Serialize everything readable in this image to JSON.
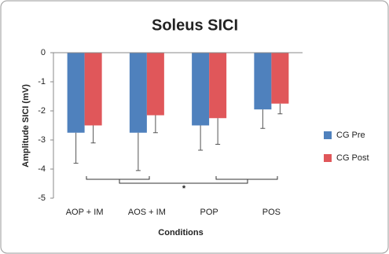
{
  "chart_data": {
    "type": "bar",
    "title": "Soleus SICI",
    "y_label": "Amplitude SICI (mV)",
    "x_label": "Conditions",
    "categories": [
      "AOP + IM",
      "AOS + IM",
      "POP",
      "POS"
    ],
    "series": [
      {
        "name": "CG Pre",
        "color": "#4f81bd",
        "values": [
          -2.75,
          -2.75,
          -2.5,
          -1.95
        ],
        "errors": [
          1.05,
          1.3,
          0.85,
          0.65
        ]
      },
      {
        "name": "CG Post",
        "color": "#e0575a",
        "values": [
          -2.5,
          -2.15,
          -2.25,
          -1.75
        ],
        "errors": [
          0.6,
          0.6,
          0.9,
          0.35
        ]
      }
    ],
    "ylim": [
      -5,
      0
    ],
    "yticks": [
      0,
      -1,
      -2,
      -3,
      -4,
      -5
    ],
    "grid": false,
    "legend": "right",
    "annotation": "*"
  }
}
